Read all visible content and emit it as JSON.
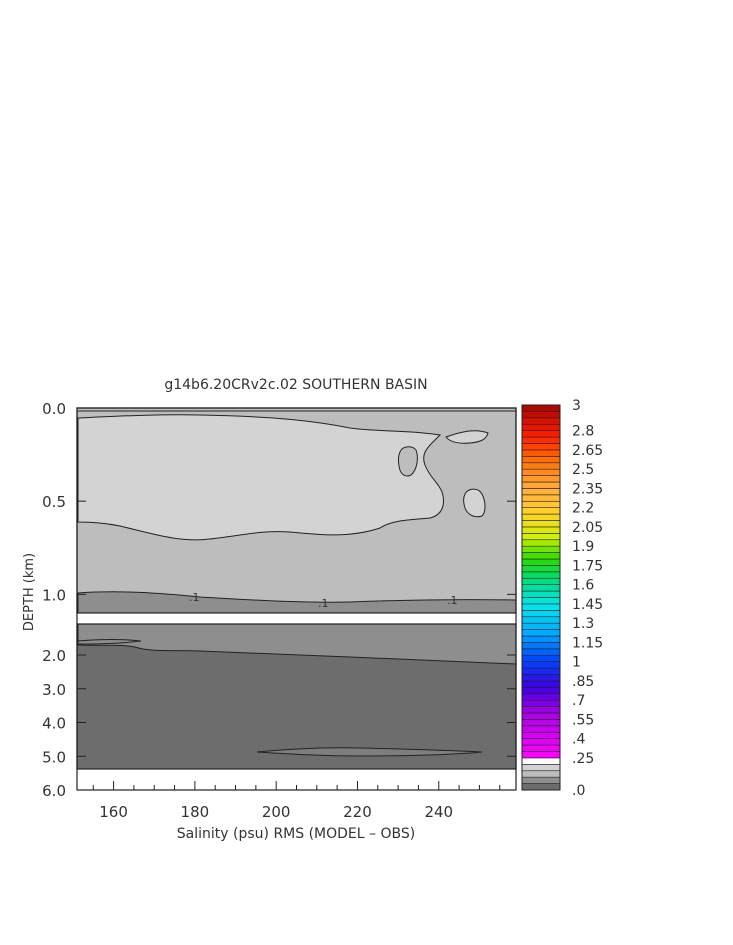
{
  "chart_data": {
    "type": "heatmap",
    "title": "g14b6.20CRv2c.02 SOUTHERN BASIN",
    "xlabel": "Salinity (psu) RMS (MODEL – OBS)",
    "ylabel": "DEPTH (km)",
    "x_ticks": [
      160,
      180,
      200,
      220,
      240
    ],
    "xlim": [
      151,
      259
    ],
    "upper_panel": {
      "ylim": [
        0.0,
        1.1
      ],
      "y_ticks": [
        "0.0",
        "0.5",
        "1.0"
      ],
      "y_tick_values": [
        0.0,
        0.5,
        1.0
      ],
      "contour_labels": [
        {
          "text": ".1",
          "x": 180,
          "depth": 1.02
        },
        {
          "text": ".1",
          "x": 212,
          "depth": 1.05
        },
        {
          "text": ".1",
          "x": 243,
          "depth": 1.04
        }
      ]
    },
    "lower_panel": {
      "ylim": [
        1.45,
        6.0
      ],
      "y_ticks": [
        "2.0",
        "3.0",
        "4.0",
        "5.0",
        "6.0"
      ],
      "y_tick_values": [
        2.0,
        3.0,
        4.0,
        5.0,
        6.0
      ]
    },
    "colorbar": {
      "labels": [
        "3",
        "2.8",
        "2.65",
        "2.5",
        "2.35",
        "2.2",
        "2.05",
        "1.9",
        "1.75",
        "1.6",
        "1.45",
        "1.3",
        "1.15",
        "1",
        ".85",
        ".7",
        ".55",
        ".4",
        ".25",
        ".0"
      ],
      "label_values": [
        3,
        2.8,
        2.65,
        2.5,
        2.35,
        2.2,
        2.05,
        1.9,
        1.75,
        1.6,
        1.45,
        1.3,
        1.15,
        1.0,
        0.85,
        0.7,
        0.55,
        0.4,
        0.25,
        0.0
      ],
      "vmin": 0.0,
      "vmax": 3.0,
      "step": 0.05
    }
  }
}
